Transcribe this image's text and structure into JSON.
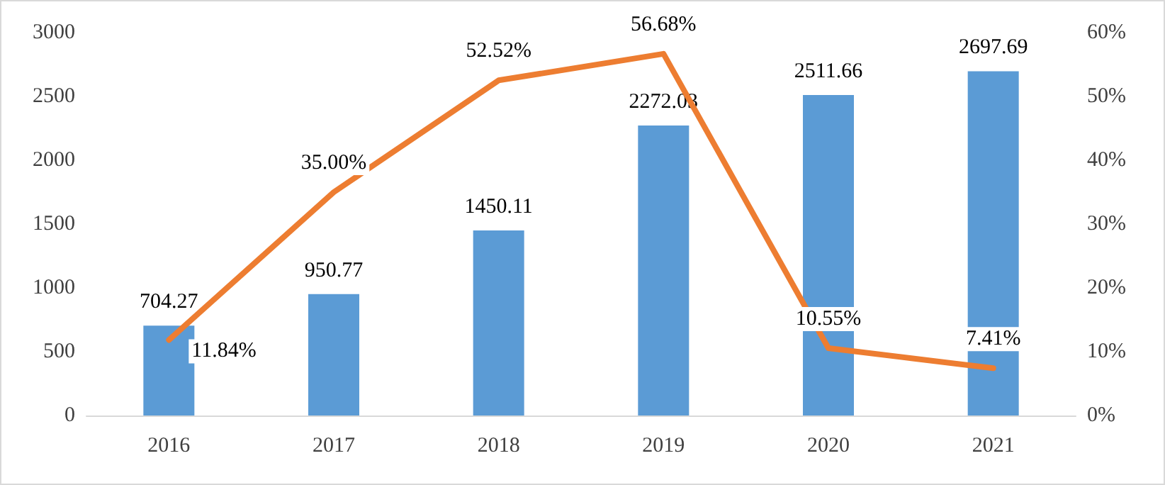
{
  "chart_data": {
    "type": "bar",
    "categories": [
      "2016",
      "2017",
      "2018",
      "2019",
      "2020",
      "2021"
    ],
    "series": [
      {
        "color": "#5b9bd5",
        "values": [
          704.27,
          950.77,
          1450.11,
          2272.03,
          2511.66,
          2697.69
        ],
        "data_labels": true
      },
      {
        "type": "line",
        "axis": "y2",
        "color": "#ed7d31",
        "values": [
          11.84,
          35.0,
          52.52,
          56.68,
          10.55,
          7.41
        ],
        "value_labels": [
          "11.84%",
          "35.00%",
          "52.52%",
          "56.68%",
          "10.55%",
          "7.41%"
        ],
        "marker": "none"
      }
    ],
    "ylim": [
      0,
      3000
    ],
    "yticks": [
      0,
      500,
      1000,
      1500,
      2000,
      2500,
      3000
    ],
    "y2lim": [
      0,
      60
    ],
    "y2ticks": [
      {
        "value": 0,
        "label": "0%"
      },
      {
        "value": 10,
        "label": "10%"
      },
      {
        "value": 20,
        "label": "20%"
      },
      {
        "value": 30,
        "label": "30%"
      },
      {
        "value": 40,
        "label": "40%"
      },
      {
        "value": 50,
        "label": "50%"
      },
      {
        "value": 60,
        "label": "60%"
      }
    ],
    "grid": false
  }
}
